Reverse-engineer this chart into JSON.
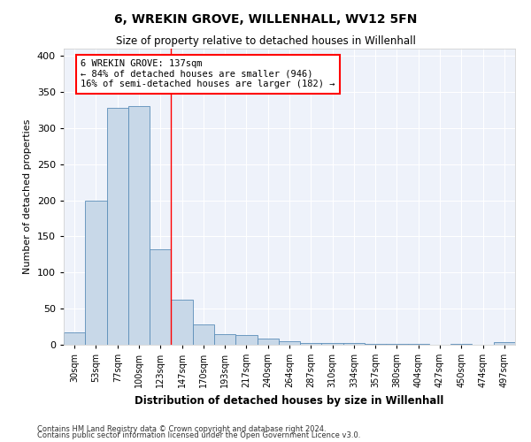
{
  "title": "6, WREKIN GROVE, WILLENHALL, WV12 5FN",
  "subtitle": "Size of property relative to detached houses in Willenhall",
  "xlabel": "Distribution of detached houses by size in Willenhall",
  "ylabel": "Number of detached properties",
  "categories": [
    "30sqm",
    "53sqm",
    "77sqm",
    "100sqm",
    "123sqm",
    "147sqm",
    "170sqm",
    "193sqm",
    "217sqm",
    "240sqm",
    "264sqm",
    "287sqm",
    "310sqm",
    "334sqm",
    "357sqm",
    "380sqm",
    "404sqm",
    "427sqm",
    "450sqm",
    "474sqm",
    "497sqm"
  ],
  "values": [
    17,
    200,
    328,
    330,
    132,
    62,
    28,
    15,
    14,
    8,
    5,
    3,
    3,
    2,
    1,
    1,
    1,
    0,
    1,
    0,
    4
  ],
  "bar_color": "#c8d8e8",
  "bar_edge_color": "#5b8db8",
  "background_color": "#eef2fa",
  "grid_color": "#ffffff",
  "vline_x": 4.5,
  "vline_color": "red",
  "annotation_text": "6 WREKIN GROVE: 137sqm\n← 84% of detached houses are smaller (946)\n16% of semi-detached houses are larger (182) →",
  "annotation_box_color": "white",
  "annotation_box_edge_color": "red",
  "ylim": [
    0,
    410
  ],
  "yticks": [
    0,
    50,
    100,
    150,
    200,
    250,
    300,
    350,
    400
  ],
  "footer1": "Contains HM Land Registry data © Crown copyright and database right 2024.",
  "footer2": "Contains public sector information licensed under the Open Government Licence v3.0."
}
